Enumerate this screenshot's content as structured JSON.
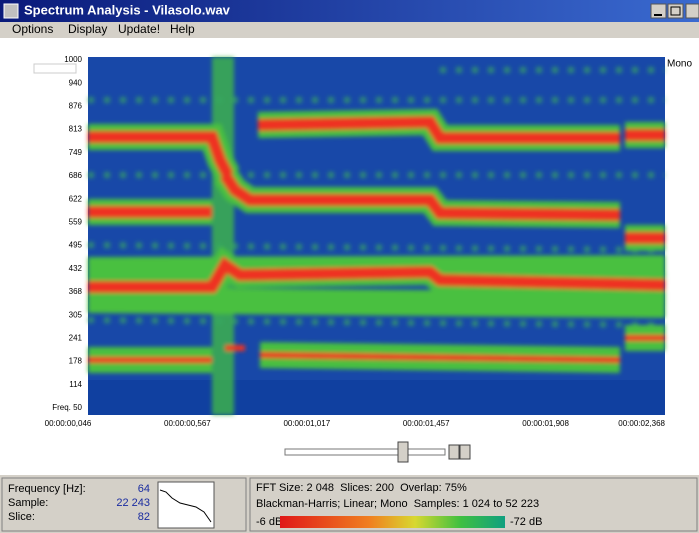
{
  "window": {
    "title": "Spectrum Analysis - Vilasolo.wav"
  },
  "menu": [
    "Options",
    "Display",
    "Update!",
    "Help"
  ],
  "spectrogram": {
    "y_labels": [
      "1000",
      "940",
      "876",
      "813",
      "749",
      "686",
      "622",
      "559",
      "495",
      "432",
      "368",
      "305",
      "241",
      "178",
      "114",
      "Freq. 50"
    ],
    "x_labels": [
      "00:00:00,046",
      "00:00:00,567",
      "00:00:01,017",
      "00:00:01,457",
      "00:00:01,908",
      "00:00:02,368"
    ],
    "channel": "Mono"
  },
  "status": {
    "fields": [
      {
        "label": "Frequency [Hz]:",
        "value": "64"
      },
      {
        "label": "Sample:",
        "value": "22 243"
      },
      {
        "label": "Slice:",
        "value": "82"
      }
    ],
    "info": [
      "FFT Size: 2 048  Slices: 200  Overlap: 75%",
      "Blackman-Harris; Linear; Mono  Samples: 1 024 to 52 223"
    ],
    "scale_min": "-6 dB",
    "scale_max": "-72 dB"
  }
}
